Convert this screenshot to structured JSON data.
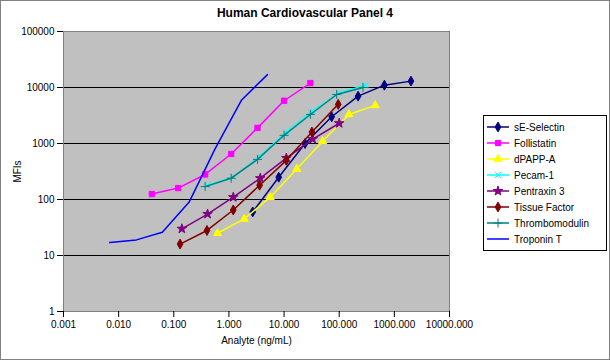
{
  "chart_data": {
    "type": "line",
    "title": "Human Cardiovascular Panel 4",
    "x_label": "Analyte (ng/mL)",
    "y_label": "MFIs",
    "log": true,
    "grid": true,
    "legend": "right",
    "xlim": [
      0.001,
      10000
    ],
    "ylim": [
      1,
      100000
    ],
    "xticks": [
      0.001,
      {
        "value": 0.01,
        "label": "0.010"
      },
      {
        "value": 0.1,
        "label": "0.100"
      },
      {
        "value": 1,
        "label": "1.000"
      },
      {
        "value": 10,
        "label": "10.000"
      },
      {
        "value": 100,
        "label": "100.000"
      },
      {
        "value": 1000,
        "label": "1000.000"
      },
      {
        "value": 10000,
        "label": "10000.000"
      }
    ],
    "yticks": [
      1,
      10,
      100,
      1000,
      10000,
      100000
    ],
    "series": [
      {
        "name": "sE-Selectin",
        "color": "#000080",
        "marker": "diamond",
        "x": [
          2.7,
          8,
          24,
          73,
          220,
          660,
          2000
        ],
        "values": [
          60,
          250,
          1000,
          3000,
          7000,
          11000,
          13000
        ]
      },
      {
        "name": "Follistatin",
        "color": "#ff00ff",
        "marker": "square",
        "x": [
          0.04,
          0.12,
          0.37,
          1.1,
          3.3,
          10,
          30
        ],
        "values": [
          125,
          160,
          280,
          650,
          1900,
          5800,
          12000
        ]
      },
      {
        "name": "dPAPP-A",
        "color": "#ffff00",
        "marker": "triangle",
        "x": [
          0.62,
          1.9,
          5.6,
          17,
          50,
          150,
          450
        ],
        "values": [
          25,
          45,
          110,
          350,
          1100,
          3300,
          4800
        ]
      },
      {
        "name": "Pecam-1",
        "color": "#00ffff",
        "marker": "x",
        "x": [
          0.41,
          1.2,
          3.7,
          11,
          33,
          100,
          300
        ],
        "values": [
          180,
          250,
          600,
          1600,
          3800,
          8000,
          11000
        ]
      },
      {
        "name": "Pentraxin 3",
        "color": "#800080",
        "marker": "star",
        "x": [
          0.14,
          0.41,
          1.2,
          3.7,
          11,
          33,
          100
        ],
        "values": [
          30,
          55,
          110,
          240,
          550,
          1200,
          2300
        ]
      },
      {
        "name": "Tissue Factor",
        "color": "#800000",
        "marker": "diamond",
        "x": [
          0.13,
          0.4,
          1.2,
          3.6,
          11,
          32,
          96
        ],
        "values": [
          16,
          28,
          65,
          180,
          500,
          1600,
          5000
        ]
      },
      {
        "name": "Thrombomodulin",
        "color": "#008080",
        "marker": "plus",
        "x": [
          0.37,
          1.1,
          3.3,
          10,
          30,
          90,
          270
        ],
        "values": [
          170,
          240,
          520,
          1400,
          3300,
          7500,
          10000
        ]
      },
      {
        "name": "Troponin T",
        "color": "#0000ff",
        "marker": "none",
        "x": [
          0.0069,
          0.021,
          0.062,
          0.19,
          0.56,
          1.7,
          5
        ],
        "values": [
          17,
          19,
          26,
          90,
          800,
          6000,
          17000
        ]
      }
    ]
  }
}
